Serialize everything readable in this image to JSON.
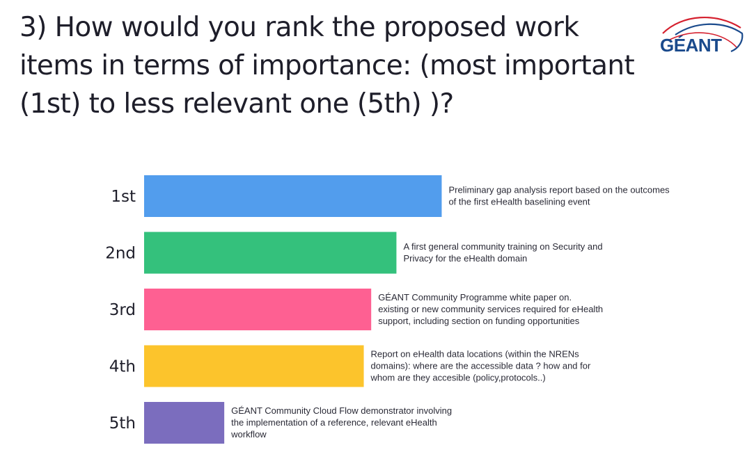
{
  "title": "3) How would you rank the proposed work items in terms of importance: (most important (1st) to less relevant one (5th) )?",
  "logo": {
    "text": "GÉANT",
    "colors": {
      "arc_red": "#d5202e",
      "arc_blue": "#1a4a8c"
    }
  },
  "chart_data": {
    "type": "bar",
    "orientation": "horizontal",
    "title": "3) How would you rank the proposed work items in terms of importance: (most important (1st) to less relevant one (5th) )?",
    "xlim": [
      0,
      5
    ],
    "grid": false,
    "legend": "none",
    "categories": [
      "1st",
      "2nd",
      "3rd",
      "4th",
      "5th"
    ],
    "values": [
      4.01,
      3.4,
      3.06,
      2.96,
      1.08
    ],
    "bar_labels": [
      [
        "Preliminary gap analysis report based on the outcomes",
        "of the first eHealth baselining event"
      ],
      [
        "A first general community training on Security and",
        "Privacy for the eHealth domain"
      ],
      [
        "GÉANT Community Programme white paper on.",
        "existing or new community services required for eHealth",
        "support, including section on funding opportunities"
      ],
      [
        "Report on eHealth data locations (within the NRENs",
        "domains): where are the accessible data ? how and for",
        "whom are they accesible (policy,protocols..)"
      ],
      [
        "GÉANT Community Cloud Flow demonstrator involving",
        "the implementation of a reference, relevant eHealth",
        "workflow"
      ]
    ],
    "colors": [
      "#529ded",
      "#34c17c",
      "#fe6092",
      "#fcc42c",
      "#7b6dbe"
    ]
  }
}
